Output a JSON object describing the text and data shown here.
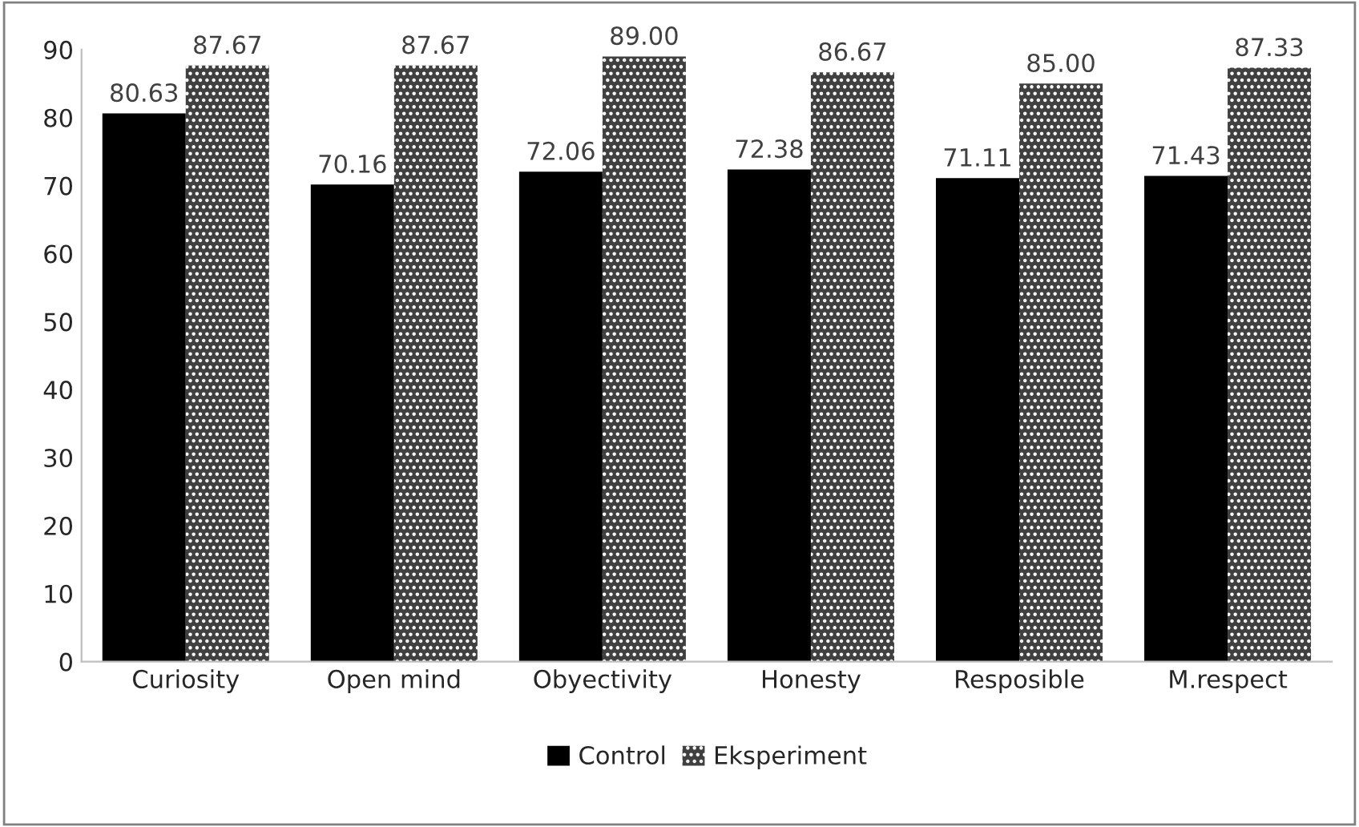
{
  "chart_data": {
    "type": "bar",
    "categories": [
      "Curiosity",
      "Open mind",
      "Obyectivity",
      "Honesty",
      "Resposible",
      "M.respect"
    ],
    "series": [
      {
        "name": "Control",
        "color": "#000000",
        "values": [
          80.63,
          70.16,
          72.06,
          72.38,
          71.11,
          71.43
        ],
        "value_labels": [
          "80.63",
          "70.16",
          "72.06",
          "72.38",
          "71.11",
          "71.43"
        ]
      },
      {
        "name": "Eksperiment",
        "color": "#404040",
        "values": [
          87.67,
          87.67,
          89.0,
          86.67,
          85.0,
          87.33
        ],
        "value_labels": [
          "87.67",
          "87.67",
          "89.00",
          "86.67",
          "85.00",
          "87.33"
        ]
      }
    ],
    "ylim": [
      0,
      90
    ],
    "yticks": [
      0,
      10,
      20,
      30,
      40,
      50,
      60,
      70,
      80,
      90
    ],
    "grid": false,
    "legend": "bottom"
  }
}
